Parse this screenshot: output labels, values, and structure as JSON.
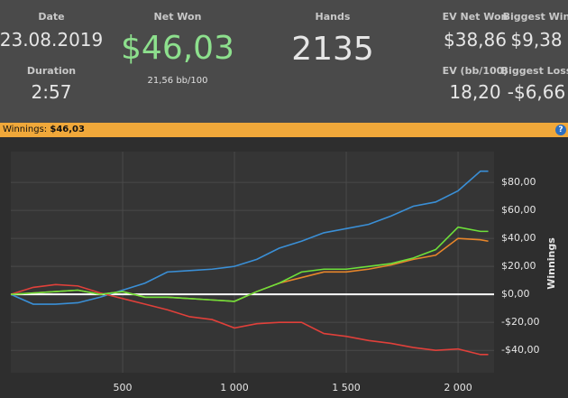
{
  "stats": {
    "date_label": "Date",
    "date": "23.08.2019",
    "duration_label": "Duration",
    "duration": "2:57",
    "net_won_label": "Net Won",
    "net_won": "$46,03",
    "net_won_sub": "21,56 bb/100",
    "hands_label": "Hands",
    "hands": "2135",
    "ev_net_won_label": "EV Net Won",
    "ev_net_won": "$38,86",
    "biggest_win_label": "Biggest Win",
    "biggest_win": "$9,38",
    "ev_bb_label": "EV (bb/100)",
    "ev_bb": "18,20",
    "biggest_loss_label": "Biggest Loss",
    "biggest_loss": "-$6,66"
  },
  "bar": {
    "label": "Winnings:",
    "value": "$46,03",
    "help": "?"
  },
  "chart_data": {
    "type": "line",
    "y_label": "Winnings",
    "x": [
      0,
      100,
      200,
      300,
      400,
      500,
      600,
      700,
      800,
      900,
      1000,
      1100,
      1200,
      1300,
      1400,
      1500,
      1600,
      1700,
      1800,
      1900,
      2000,
      2100,
      2135
    ],
    "series": [
      {
        "color": "#3a8fd6",
        "values": [
          0,
          -7,
          -7,
          -6,
          -2,
          3,
          8,
          16,
          17,
          18,
          20,
          25,
          33,
          38,
          44,
          47,
          50,
          56,
          63,
          66,
          74,
          88,
          88
        ]
      },
      {
        "color": "#e0403a",
        "values": [
          0,
          5,
          7,
          6,
          1,
          -3,
          -7,
          -11,
          -16,
          -18,
          -24,
          -21,
          -20,
          -20,
          -28,
          -30,
          -33,
          -35,
          -38,
          -40,
          -39,
          -43,
          -43
        ]
      },
      {
        "color": "#e8862a",
        "values": [
          0,
          1,
          2,
          3,
          0,
          2,
          -2,
          -2,
          -3,
          -4,
          -5,
          2,
          8,
          12,
          16,
          16,
          18,
          21,
          25,
          28,
          40,
          39,
          38
        ]
      },
      {
        "color": "#6ee03a",
        "values": [
          0,
          1,
          2,
          3,
          0,
          2,
          -2,
          -2,
          -3,
          -4,
          -5,
          2,
          8,
          16,
          18,
          18,
          20,
          22,
          26,
          32,
          48,
          45,
          45
        ]
      }
    ],
    "xlim": [
      0,
      2161
    ],
    "xticks": [
      500,
      {
        "value": 1000,
        "label": "1 000"
      },
      {
        "value": 1500,
        "label": "1 500"
      },
      {
        "value": 2000,
        "label": "2 000"
      }
    ],
    "ylim": [
      -56,
      102
    ],
    "yticks": [
      {
        "value": -40,
        "label": "-$40,00"
      },
      {
        "value": -20,
        "label": "-$20,00"
      },
      {
        "value": 0,
        "label": "$0,00"
      },
      {
        "value": 20,
        "label": "$20,00"
      },
      {
        "value": 40,
        "label": "$40,00"
      },
      {
        "value": 60,
        "label": "$60,00"
      },
      {
        "value": 80,
        "label": "$80,00"
      }
    ],
    "grid": true
  }
}
